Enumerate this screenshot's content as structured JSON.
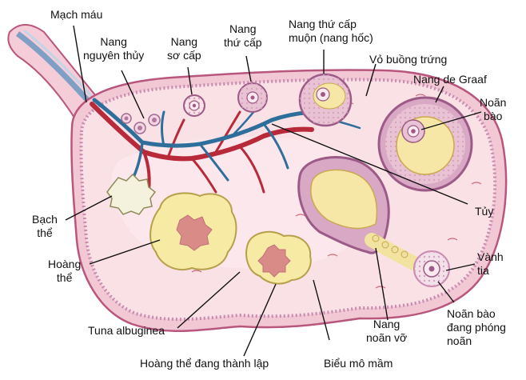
{
  "labels": {
    "mach_mau": "Mạch máu",
    "nang_nguyen_thuy": "Nang\nnguyên thủy",
    "nang_so_cap": "Nang\nsơ cấp",
    "nang_thu_cap": "Nang\nthứ cấp",
    "nang_thu_cap_muon": "Nang thứ cấp\nmuộn (nang hốc)",
    "vo_buong_trung": "Vỏ buồng trứng",
    "nang_de_graaf": "Nang de Graaf",
    "noan_bao": "Noãn\nbào",
    "tuy": "Tủy",
    "bach_the": "Bạch\nthể",
    "hoang_the": "Hoàng\nthể",
    "vanh_tia": "Vành\ntia",
    "noan_bao_dang_phong_noan": "Noãn bào\nđang phóng\nnoãn",
    "nang_noan_vo": "Nang\nnoãn vỡ",
    "tuna_albuginea": "Tuna albuginea",
    "hoang_the_dang_thanh_lap": "Hoàng thể đang thành lập",
    "bieu_mo_mam": "Biểu mô mầm"
  },
  "colors": {
    "tunica": "#f2c8d4",
    "cortex": "#f9e1e6",
    "medulla": "#fbe8ec",
    "vessel_red": "#b8293a",
    "vessel_blue": "#2d6f9a",
    "follicle_wall": "#9c5a86",
    "follicle_cells": "#e9c3d4",
    "antrum": "#f6e7a6",
    "corpus_luteum": "#f6eaa4",
    "corpus_luteum_center": "#d98b88",
    "corpus_albicans": "#f4f1dd",
    "line": "#111111"
  }
}
